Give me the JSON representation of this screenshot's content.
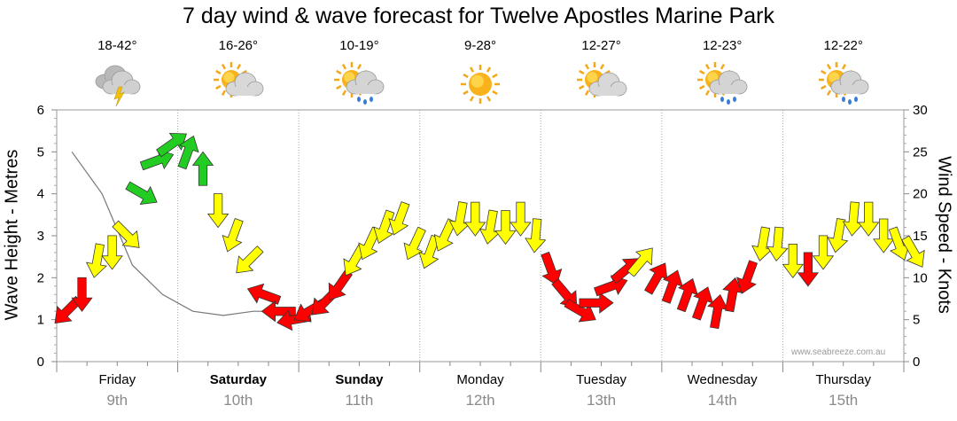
{
  "chart_data": {
    "type": "line",
    "title": "7 day wind & wave forecast for Twelve Apostles Marine Park",
    "ylabel_left": "Wave Height - Metres",
    "ylabel_right": "Wind Speed - Knots",
    "ylim_left": [
      0,
      6
    ],
    "ylim_right": [
      0,
      30
    ],
    "yticks_left": [
      "0",
      "1",
      "2",
      "3",
      "4",
      "5",
      "6"
    ],
    "yticks_right": [
      "0",
      "5",
      "10",
      "15",
      "20",
      "25",
      "30"
    ],
    "days": [
      {
        "name": "Friday",
        "date": "9th",
        "temp": "18-42°",
        "weather": "storm",
        "bold": false
      },
      {
        "name": "Saturday",
        "date": "10th",
        "temp": "16-26°",
        "weather": "partly-cloudy",
        "bold": true
      },
      {
        "name": "Sunday",
        "date": "11th",
        "temp": "10-19°",
        "weather": "showers",
        "bold": true
      },
      {
        "name": "Monday",
        "date": "12th",
        "temp": "9-28°",
        "weather": "sunny",
        "bold": false
      },
      {
        "name": "Tuesday",
        "date": "13th",
        "temp": "12-27°",
        "weather": "partly-cloudy",
        "bold": false
      },
      {
        "name": "Wednesday",
        "date": "14th",
        "temp": "12-23°",
        "weather": "showers",
        "bold": false
      },
      {
        "name": "Thursday",
        "date": "15th",
        "temp": "12-22°",
        "weather": "showers",
        "bold": false
      }
    ],
    "wave_series": {
      "name": "Wave Height",
      "x_hours": [
        0,
        6,
        12,
        18,
        24,
        30,
        36,
        42
      ],
      "values": [
        5.0,
        4.0,
        2.3,
        1.6,
        1.2,
        1.1,
        1.2,
        1.2
      ]
    },
    "wind_series": {
      "name": "Wind Speed",
      "x_hours": [
        0,
        3,
        6,
        9,
        12,
        15,
        18,
        21,
        24,
        27,
        30,
        33,
        36,
        39,
        42,
        45,
        48,
        51,
        54,
        57,
        60,
        63,
        66,
        69,
        72,
        75,
        78,
        81,
        84,
        87,
        90,
        93,
        96,
        99,
        102,
        105,
        108,
        111,
        114,
        117,
        120,
        123,
        126,
        129,
        132,
        135,
        138,
        141,
        144,
        147,
        150,
        153,
        156,
        159,
        162,
        165,
        168
      ],
      "knots": [
        6,
        8,
        12,
        13,
        15,
        20,
        24,
        26,
        25,
        23,
        18,
        15,
        12,
        8,
        6,
        5,
        6,
        7,
        9,
        12,
        14,
        16,
        17,
        14,
        13,
        15,
        17,
        17,
        16,
        16,
        17,
        15,
        11,
        8,
        6,
        7,
        9,
        11,
        12,
        10,
        9,
        8,
        7,
        6,
        8,
        10,
        14,
        14,
        12,
        11,
        13,
        15,
        17,
        17,
        15,
        14,
        13
      ],
      "directions_deg": [
        45,
        0,
        10,
        0,
        315,
        300,
        250,
        235,
        200,
        180,
        0,
        20,
        45,
        110,
        90,
        80,
        60,
        45,
        35,
        30,
        25,
        20,
        20,
        25,
        20,
        25,
        10,
        0,
        10,
        0,
        0,
        5,
        340,
        320,
        300,
        270,
        250,
        230,
        220,
        210,
        200,
        200,
        200,
        190,
        190,
        20,
        10,
        5,
        0,
        0,
        0,
        10,
        5,
        0,
        0,
        340,
        330
      ],
      "color_thresholds": {
        "green": 20,
        "yellow": 12,
        "red": 0
      },
      "colors": {
        "green": "#22cc22",
        "yellow": "#ffff00",
        "red": "#ff0000"
      }
    }
  },
  "credit": "www.seabreeze.com.au"
}
